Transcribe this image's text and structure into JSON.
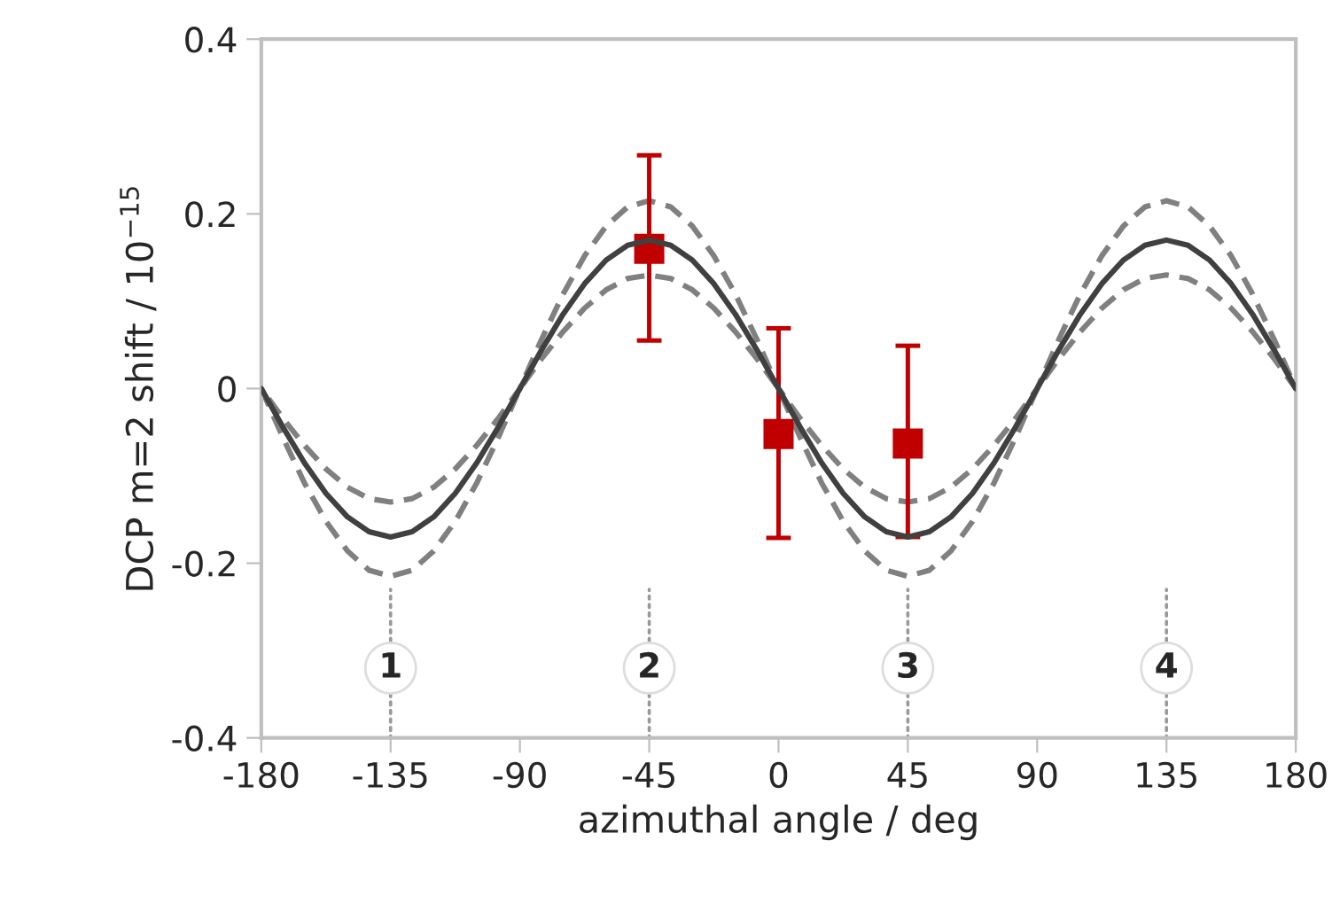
{
  "chart_data": {
    "type": "line",
    "xlabel": "azimuthal angle / deg",
    "ylabel": "DCP m=2 shift / 10$^{−15}$",
    "xlim": [
      -180,
      180
    ],
    "xticks": [
      -180,
      -135,
      -90,
      -45,
      0,
      45,
      90,
      135,
      180
    ],
    "ylim": [
      -0.4,
      0.4
    ],
    "yticks": [
      {
        "value": -0.4,
        "label": "-0.4"
      },
      {
        "value": -0.2,
        "label": "-0.2"
      },
      0,
      0.2,
      0.4
    ],
    "grid": false,
    "legend": false,
    "series": [
      {
        "line_style": "solid",
        "color": "#404040",
        "x": [
          -180,
          -172.5,
          -165,
          -157.5,
          -150,
          -142.5,
          -135,
          -127.5,
          -120,
          -112.5,
          -105,
          -97.5,
          -90,
          -82.5,
          -75,
          -67.5,
          -60,
          -52.5,
          -45,
          -37.5,
          -30,
          -22.5,
          -15,
          -7.5,
          0,
          7.5,
          15,
          22.5,
          30,
          37.5,
          45,
          52.5,
          60,
          67.5,
          75,
          82.5,
          90,
          97.5,
          105,
          112.5,
          120,
          127.5,
          135,
          142.5,
          150,
          157.5,
          165,
          172.5,
          180
        ],
        "values": [
          0,
          -0.044,
          -0.085,
          -0.12,
          -0.147,
          -0.164,
          -0.17,
          -0.164,
          -0.147,
          -0.12,
          -0.085,
          -0.044,
          0,
          0.044,
          0.085,
          0.12,
          0.147,
          0.164,
          0.17,
          0.164,
          0.147,
          0.12,
          0.085,
          0.044,
          0,
          -0.044,
          -0.085,
          -0.12,
          -0.147,
          -0.164,
          -0.17,
          -0.164,
          -0.147,
          -0.12,
          -0.085,
          -0.044,
          0,
          0.044,
          0.085,
          0.12,
          0.147,
          0.164,
          0.17,
          0.164,
          0.147,
          0.12,
          0.085,
          0.044,
          0
        ],
        "lower": [
          0,
          -0.056,
          -0.108,
          -0.152,
          -0.186,
          -0.208,
          -0.215,
          -0.208,
          -0.186,
          -0.152,
          -0.108,
          -0.056,
          0,
          0.034,
          0.065,
          0.092,
          0.113,
          0.126,
          0.13,
          0.126,
          0.113,
          0.092,
          0.065,
          0.034,
          0,
          -0.056,
          -0.108,
          -0.152,
          -0.186,
          -0.208,
          -0.215,
          -0.208,
          -0.186,
          -0.152,
          -0.108,
          -0.056,
          0,
          0.034,
          0.065,
          0.092,
          0.113,
          0.126,
          0.13,
          0.126,
          0.113,
          0.092,
          0.065,
          0.034,
          0
        ],
        "upper": [
          0,
          -0.034,
          -0.065,
          -0.092,
          -0.113,
          -0.126,
          -0.13,
          -0.126,
          -0.113,
          -0.092,
          -0.065,
          -0.034,
          0,
          0.056,
          0.108,
          0.152,
          0.186,
          0.208,
          0.215,
          0.208,
          0.186,
          0.152,
          0.108,
          0.056,
          0,
          -0.034,
          -0.065,
          -0.092,
          -0.113,
          -0.126,
          -0.13,
          -0.126,
          -0.113,
          -0.092,
          -0.065,
          -0.034,
          0,
          0.056,
          0.108,
          0.152,
          0.186,
          0.208,
          0.215,
          0.208,
          0.186,
          0.152,
          0.108,
          0.056,
          0
        ]
      },
      {
        "type": "scatter",
        "marker": "square",
        "color": "#c00000",
        "x": [
          -45,
          0,
          45
        ],
        "values": [
          0.16,
          -0.052,
          -0.063
        ],
        "errors": [
          [
            0.055,
            0.267
          ],
          [
            -0.171,
            0.069
          ],
          [
            -0.17,
            0.049
          ]
        ]
      }
    ],
    "annotations": [
      {
        "text": "1",
        "x": -135,
        "y": -0.32
      },
      {
        "text": "2",
        "x": -45,
        "y": -0.32
      },
      {
        "text": "3",
        "x": 45,
        "y": -0.32
      },
      {
        "text": "4",
        "x": 135,
        "y": -0.32
      }
    ]
  }
}
